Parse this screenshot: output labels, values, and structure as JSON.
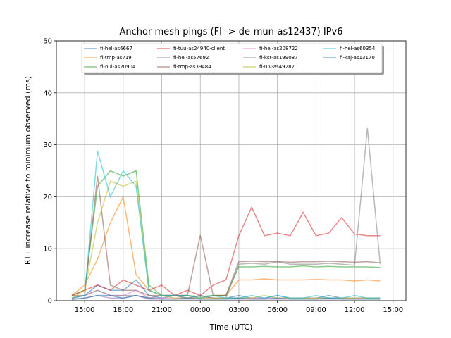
{
  "chart_data": {
    "type": "line",
    "title": "Anchor mesh pings (FI -> de-mun-as12437) IPv6",
    "x_label": "Time (UTC)",
    "y_label": "RTT increase relative to minimum observed (ms)",
    "x": [
      14,
      15,
      16,
      17,
      18,
      19,
      20,
      21,
      22,
      23,
      24,
      25,
      26,
      27,
      28,
      29,
      30,
      31,
      32,
      33,
      34,
      35,
      36,
      37,
      38
    ],
    "series": [
      {
        "name": "fi-hel-as6667",
        "color": "#1f77b4",
        "values": [
          0.5,
          1,
          3,
          2,
          2,
          4,
          1,
          0.5,
          1,
          0.5,
          1,
          0.5,
          0.5,
          1,
          0.5,
          0.5,
          1,
          0.5,
          0.5,
          0.5,
          1,
          0.5,
          0.5,
          0.5,
          0.5
        ]
      },
      {
        "name": "fi-tmp-as719",
        "color": "#ff7f0e",
        "values": [
          1,
          3,
          8,
          15,
          20,
          5,
          2,
          1,
          1,
          1,
          0.5,
          1,
          1,
          4,
          4,
          4.2,
          4,
          4,
          4,
          4.1,
          4,
          4,
          3.8,
          4,
          3.8
        ]
      },
      {
        "name": "fi-oul-as20904",
        "color": "#2ca02c",
        "values": [
          1,
          2,
          22,
          25,
          24,
          25,
          3,
          1,
          1,
          1,
          0.8,
          1,
          1,
          6.5,
          6.5,
          6.6,
          6.5,
          6.5,
          6.7,
          6.5,
          6.6,
          6.5,
          6.5,
          6.5,
          6.4
        ]
      },
      {
        "name": "fi-tuu-as24940-client",
        "color": "#d62728",
        "values": [
          1,
          2,
          3,
          2,
          4,
          3,
          2,
          3,
          1,
          2,
          1,
          3,
          4,
          12.5,
          18,
          12.5,
          13,
          12.5,
          17,
          12.5,
          13,
          16,
          12.8,
          12.5,
          12.5
        ]
      },
      {
        "name": "fi-hel-as57692",
        "color": "#9467bd",
        "values": [
          0.3,
          0.5,
          1,
          0.5,
          0.5,
          1,
          0.3,
          0.3,
          0.3,
          0.3,
          0.3,
          0.3,
          0.3,
          0.3,
          0.3,
          0.3,
          0.3,
          0.3,
          0.3,
          0.3,
          0.3,
          0.3,
          0.3,
          0.3,
          0.3
        ]
      },
      {
        "name": "fi-tmp-as39484",
        "color": "#8c564b",
        "values": [
          1,
          1,
          24,
          3,
          2,
          2,
          1,
          1,
          1,
          1,
          12.6,
          1,
          1,
          7.5,
          7.6,
          7.5,
          7.5,
          7.4,
          7.5,
          7.5,
          7.6,
          7.5,
          7.4,
          7.5,
          7.3
        ]
      },
      {
        "name": "fi-hel-as208722",
        "color": "#e377c2",
        "values": [
          0.5,
          1,
          2,
          1,
          1,
          2,
          0.5,
          0.5,
          0.5,
          0.5,
          0.5,
          0.5,
          0.5,
          0.5,
          0.5,
          0.5,
          0.5,
          0.5,
          0.5,
          0.5,
          0.5,
          0.5,
          0.5,
          0.5,
          0.5
        ]
      },
      {
        "name": "fi-kst-as199087",
        "color": "#7f7f7f",
        "values": [
          0.5,
          1,
          2,
          1,
          1,
          1,
          0.5,
          1,
          1,
          0.5,
          1,
          0.5,
          0.5,
          7,
          7.2,
          7,
          7.5,
          7,
          7,
          7,
          7.2,
          7,
          6.8,
          33.2,
          7
        ]
      },
      {
        "name": "fi-ulv-as49282",
        "color": "#bcbd22",
        "values": [
          0.5,
          2,
          15,
          23,
          22,
          23,
          2,
          1,
          0.5,
          0.5,
          0.5,
          0.5,
          0.5,
          0.5,
          0.5,
          1,
          0.5,
          0.5,
          0.5,
          0.5,
          0.5,
          0.5,
          0.5,
          0.5,
          0.5
        ]
      },
      {
        "name": "fi-hel-as60354",
        "color": "#17becf",
        "values": [
          0.5,
          1,
          28.8,
          20,
          25,
          22,
          2,
          1,
          1,
          1,
          0.5,
          1,
          0.5,
          0.5,
          1,
          0.5,
          1,
          0.5,
          0.5,
          1,
          0.5,
          0.5,
          1,
          0.5,
          0.5
        ]
      },
      {
        "name": "fi-kaj-as13170",
        "color": "#1f77b4",
        "values": [
          0.2,
          0.5,
          1,
          1,
          0.5,
          1,
          0.5,
          0.3,
          0.3,
          0.5,
          0.3,
          0.3,
          0.3,
          0.5,
          0.3,
          0.3,
          0.5,
          0.3,
          0.3,
          0.3,
          0.5,
          0.3,
          0.3,
          0.3,
          0.3
        ]
      }
    ],
    "xlim": [
      12.8,
      40.0
    ],
    "xticks": [
      {
        "value": 15,
        "label": "15:00"
      },
      {
        "value": 18,
        "label": "18:00"
      },
      {
        "value": 21,
        "label": "21:00"
      },
      {
        "value": 24,
        "label": "00:00"
      },
      {
        "value": 27,
        "label": "03:00"
      },
      {
        "value": 30,
        "label": "06:00"
      },
      {
        "value": 33,
        "label": "09:00"
      },
      {
        "value": 36,
        "label": "12:00"
      },
      {
        "value": 39,
        "label": "15:00"
      }
    ],
    "ylim": [
      0,
      50
    ],
    "yticks": [
      0,
      10,
      20,
      30,
      40,
      50
    ],
    "grid": true,
    "legend": "top"
  }
}
